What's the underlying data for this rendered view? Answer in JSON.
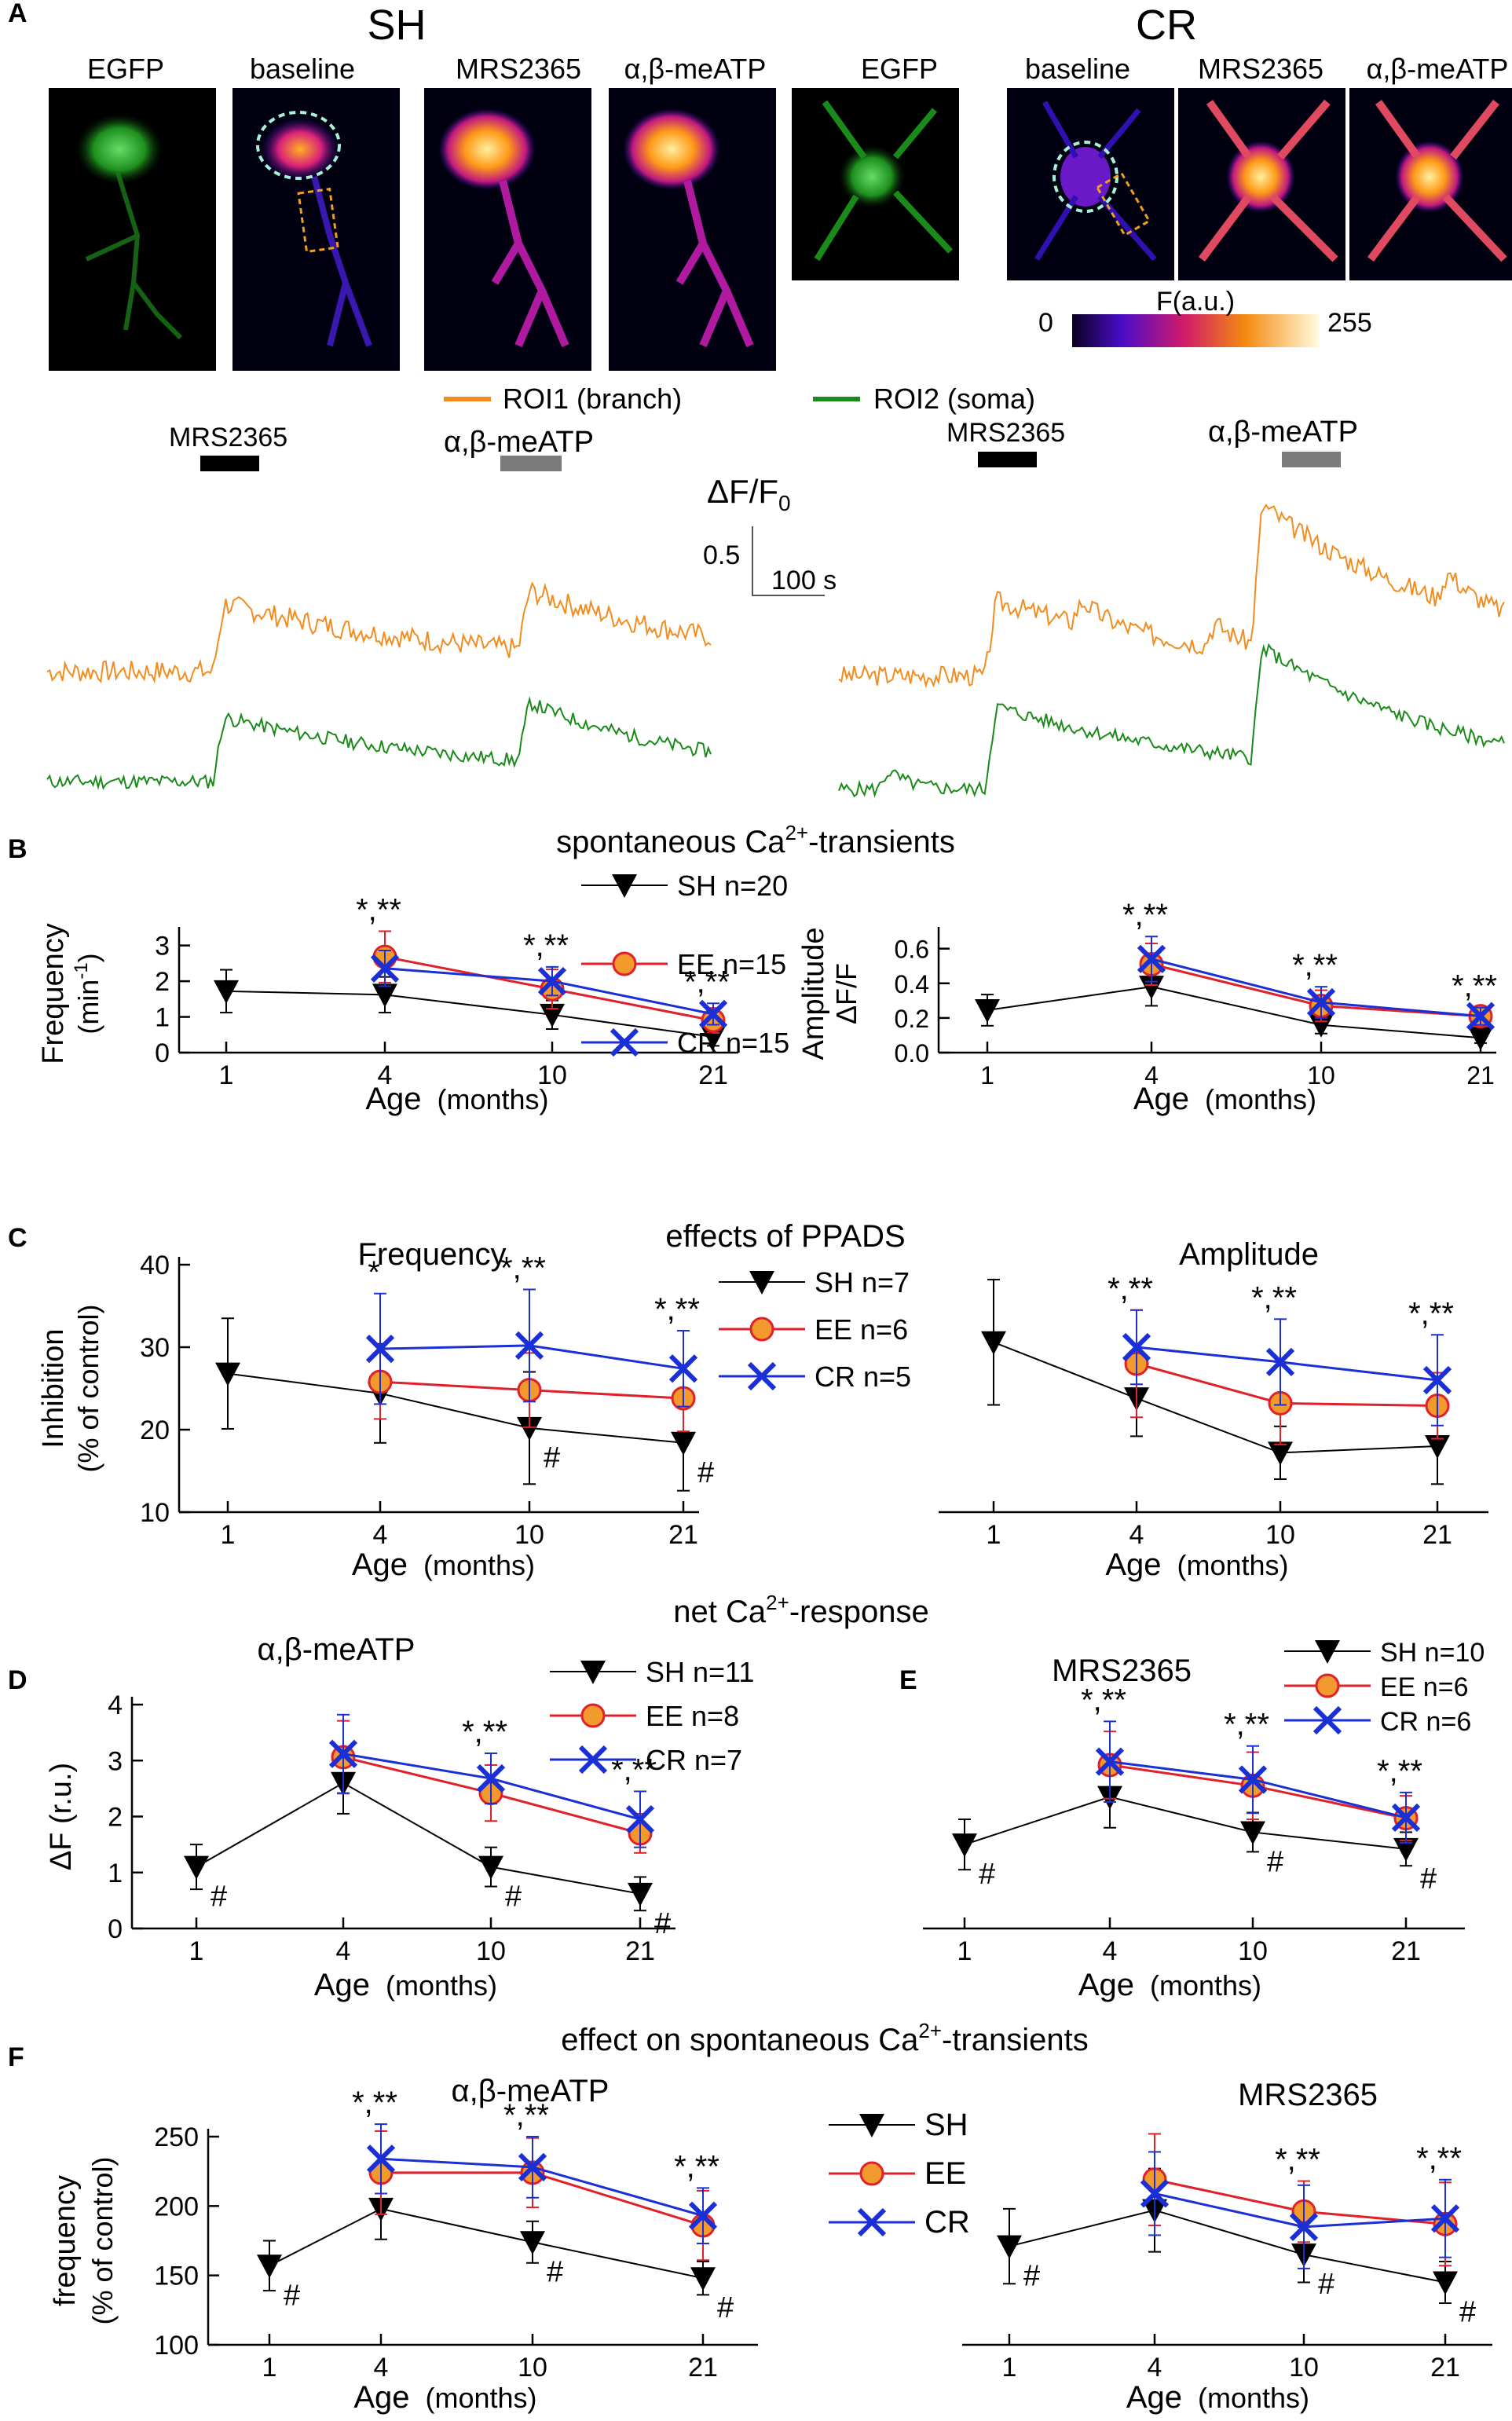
{
  "colors": {
    "SH": "#000000",
    "SH_line": "#555555",
    "EE": "#e0202a",
    "EE_fill": "#f29a2e",
    "CR": "#1a2fd6",
    "orange_trace": "#f28c1f",
    "green_trace": "#1a8a1a",
    "black_bar": "#000000",
    "gray_bar": "#7a7a7a"
  },
  "panel_letters": {
    "A": "A",
    "B": "B",
    "C": "C",
    "D": "D",
    "E": "E",
    "F": "F"
  },
  "panel_A": {
    "group_SH": "SH",
    "group_CR": "CR",
    "image_labels": [
      "EGFP",
      "baseline",
      "MRS2365",
      "α,β-meATP"
    ],
    "colorbar_label": "F(a.u.)",
    "colorbar_min": "0",
    "colorbar_max": "255",
    "legend_roi1": "ROI1 (branch)",
    "legend_roi2": "ROI2 (soma)",
    "drug1": "MRS2365",
    "drug2": "α,β-meATP",
    "scale_y_base": "ΔF/F",
    "scale_y_sub": "0",
    "scale_y_value": "0.5",
    "scale_x_value": "100 s"
  },
  "legend_labels": {
    "B": [
      "SH n=20",
      "EE n=15",
      "CR n=15"
    ],
    "C": [
      "SH n=7",
      "EE n=6",
      "CR n=5"
    ],
    "D": [
      "SH n=11",
      "EE n=8",
      "CR n=7"
    ],
    "E": [
      "SH n=10",
      "EE n=6",
      "CR n=6"
    ],
    "F": [
      "SH",
      "EE",
      "CR"
    ]
  },
  "section_titles": {
    "B_pre": "spontaneous  Ca",
    "B_sup": "2+",
    "B_post": "-transients",
    "C": "effects of PPADS",
    "D_pre": "net Ca",
    "D_sup": "2+",
    "D_post": "-response",
    "F_pre": "effect on spontaneous  Ca",
    "F_sup": "2+",
    "F_post": "-transients"
  },
  "chart_data": [
    {
      "id": "B_freq",
      "type": "line",
      "panel": "B",
      "ylabel_line1": "Frequency",
      "ylabel_line2_pre": "(min",
      "ylabel_line2_sup": "-1",
      "ylabel_line2_post": ")",
      "xlabel": "Age",
      "xunit": "(months)",
      "categories": [
        "1",
        "4",
        "10",
        "21"
      ],
      "ylim": [
        0,
        3.3
      ],
      "yticks": [
        "0",
        "1",
        "2",
        "3"
      ],
      "series": [
        {
          "name": "SH",
          "values": [
            1.72,
            1.62,
            1.06,
            0.44
          ],
          "err": [
            0.6,
            0.5,
            0.4,
            0.25
          ]
        },
        {
          "name": "EE",
          "values": [
            null,
            2.68,
            1.78,
            0.9
          ],
          "err": [
            0,
            0.72,
            0.55,
            0.35
          ]
        },
        {
          "name": "CR",
          "values": [
            null,
            2.36,
            2.0,
            1.08
          ],
          "err": [
            0,
            0.5,
            0.4,
            0.3
          ]
        }
      ],
      "annotations": [
        {
          "text": "*,**",
          "at": "4"
        },
        {
          "text": "*,**",
          "at": "10"
        },
        {
          "text": "*,**",
          "at": "21"
        }
      ]
    },
    {
      "id": "B_amp",
      "type": "line",
      "panel": "B",
      "ylabel_line1": "Amplitude",
      "ylabel_line2": "ΔF/F",
      "xlabel": "Age",
      "xunit": "(months)",
      "categories": [
        "1",
        "4",
        "10",
        "21"
      ],
      "ylim": [
        0,
        0.68
      ],
      "yticks": [
        "0.0",
        "0.2",
        "0.4",
        "0.6"
      ],
      "series": [
        {
          "name": "SH",
          "values": [
            0.245,
            0.38,
            0.16,
            0.085
          ],
          "err": [
            0.09,
            0.11,
            0.05,
            0.03
          ]
        },
        {
          "name": "EE",
          "values": [
            null,
            0.51,
            0.27,
            0.21
          ],
          "err": [
            0,
            0.12,
            0.09,
            0.05
          ]
        },
        {
          "name": "CR",
          "values": [
            null,
            0.54,
            0.29,
            0.21
          ],
          "err": [
            0,
            0.13,
            0.09,
            0.05
          ]
        }
      ],
      "annotations": [
        {
          "text": "*,**",
          "at": "4"
        },
        {
          "text": "*,**",
          "at": "10"
        },
        {
          "text": "*,**",
          "at": "21"
        }
      ]
    },
    {
      "id": "C_freq",
      "type": "line",
      "panel": "C",
      "title": "Frequency",
      "ylabel_line1": "Inhibition",
      "ylabel_line2": "(% of control)",
      "xlabel": "Age",
      "xunit": "(months)",
      "categories": [
        "1",
        "4",
        "10",
        "21"
      ],
      "ylim": [
        10,
        40
      ],
      "yticks": [
        "10",
        "20",
        "30",
        "40"
      ],
      "series": [
        {
          "name": "SH",
          "values": [
            26.8,
            24.4,
            20.2,
            18.4
          ],
          "err": [
            6.7,
            6.0,
            6.8,
            5.8
          ]
        },
        {
          "name": "EE",
          "values": [
            null,
            25.8,
            24.8,
            23.8
          ],
          "err": [
            0,
            4.5,
            4.5,
            4.0
          ]
        },
        {
          "name": "CR",
          "values": [
            null,
            29.8,
            30.2,
            27.4
          ],
          "err": [
            0,
            6.7,
            6.8,
            4.6
          ]
        }
      ],
      "annotations": [
        {
          "text": "*",
          "at": "4"
        },
        {
          "text": "*,**",
          "at": "10"
        },
        {
          "text": "*,**",
          "at": "21"
        },
        {
          "text": "#",
          "at": "10"
        },
        {
          "text": "#",
          "at": "21"
        }
      ]
    },
    {
      "id": "C_amp",
      "type": "line",
      "panel": "C",
      "title": "Amplitude",
      "xlabel": "Age",
      "xunit": "(months)",
      "categories": [
        "1",
        "4",
        "10",
        "21"
      ],
      "ylim": [
        10,
        40
      ],
      "yticks": [],
      "series": [
        {
          "name": "SH",
          "values": [
            30.6,
            23.8,
            17.2,
            18.0
          ],
          "err": [
            7.6,
            4.6,
            3.2,
            4.6
          ]
        },
        {
          "name": "EE",
          "values": [
            null,
            28.0,
            23.2,
            22.9
          ],
          "err": [
            0,
            6.5,
            5.0,
            4.0
          ]
        },
        {
          "name": "CR",
          "values": [
            null,
            30.0,
            28.2,
            26.0
          ],
          "err": [
            0,
            4.5,
            5.2,
            5.5
          ]
        }
      ],
      "annotations": [
        {
          "text": "*,**",
          "at": "4"
        },
        {
          "text": "*,**",
          "at": "10"
        },
        {
          "text": "*,**",
          "at": "21"
        }
      ]
    },
    {
      "id": "D",
      "type": "line",
      "panel": "D",
      "title": "α,β-meATP",
      "ylabel_line1": "ΔF (r.u.)",
      "xlabel": "Age",
      "xunit": "(months)",
      "categories": [
        "1",
        "4",
        "10",
        "21"
      ],
      "ylim": [
        0,
        4
      ],
      "yticks": [
        "0",
        "1",
        "2",
        "3",
        "4"
      ],
      "series": [
        {
          "name": "SH",
          "values": [
            1.1,
            2.6,
            1.1,
            0.62
          ],
          "err": [
            0.4,
            0.55,
            0.35,
            0.3
          ]
        },
        {
          "name": "EE",
          "values": [
            null,
            3.06,
            2.42,
            1.7
          ],
          "err": [
            0,
            0.65,
            0.5,
            0.35
          ]
        },
        {
          "name": "CR",
          "values": [
            null,
            3.12,
            2.68,
            1.95
          ],
          "err": [
            0,
            0.7,
            0.45,
            0.5
          ]
        }
      ],
      "annotations": [
        {
          "text": "#",
          "at": "1"
        },
        {
          "text": "#",
          "at": "10"
        },
        {
          "text": "#",
          "at": "21"
        },
        {
          "text": "*,**",
          "at": "10"
        },
        {
          "text": "*,**",
          "at": "21"
        }
      ]
    },
    {
      "id": "E",
      "type": "line",
      "panel": "E",
      "title": "MRS2365",
      "xlabel": "Age",
      "xunit": "(months)",
      "categories": [
        "1",
        "4",
        "10",
        "21"
      ],
      "ylim": [
        0,
        4
      ],
      "yticks": [],
      "series": [
        {
          "name": "SH",
          "values": [
            1.5,
            2.35,
            1.72,
            1.42
          ],
          "err": [
            0.45,
            0.55,
            0.35,
            0.3
          ]
        },
        {
          "name": "EE",
          "values": [
            null,
            2.92,
            2.55,
            1.97
          ],
          "err": [
            0,
            0.6,
            0.6,
            0.4
          ]
        },
        {
          "name": "CR",
          "values": [
            null,
            2.98,
            2.66,
            1.98
          ],
          "err": [
            0,
            0.72,
            0.6,
            0.45
          ]
        }
      ],
      "annotations": [
        {
          "text": "*,**",
          "at": "4"
        },
        {
          "text": "*,**",
          "at": "10"
        },
        {
          "text": "*,**",
          "at": "21"
        },
        {
          "text": "#",
          "at": "1"
        },
        {
          "text": "#",
          "at": "10"
        },
        {
          "text": "#",
          "at": "21"
        }
      ]
    },
    {
      "id": "F_ab",
      "type": "line",
      "panel": "F",
      "title": "α,β-meATP",
      "ylabel_line1": "frequency",
      "ylabel_line2": "(% of control)",
      "xlabel": "Age",
      "xunit": "(months)",
      "categories": [
        "1",
        "4",
        "10",
        "21"
      ],
      "ylim": [
        100,
        250
      ],
      "yticks": [
        "100",
        "150",
        "200",
        "250"
      ],
      "series": [
        {
          "name": "SH",
          "values": [
            157,
            198,
            174,
            148
          ],
          "err": [
            18,
            22,
            15,
            12
          ]
        },
        {
          "name": "EE",
          "values": [
            null,
            224,
            224,
            186
          ],
          "err": [
            0,
            30,
            25,
            25
          ]
        },
        {
          "name": "CR",
          "values": [
            null,
            234,
            228,
            193
          ],
          "err": [
            0,
            25,
            22,
            20
          ]
        }
      ],
      "annotations": [
        {
          "text": "*,**",
          "at": "4"
        },
        {
          "text": "*,**",
          "at": "10"
        },
        {
          "text": "*,**",
          "at": "21"
        },
        {
          "text": "#",
          "at": "1"
        },
        {
          "text": "#",
          "at": "10"
        },
        {
          "text": "#",
          "at": "21"
        }
      ]
    },
    {
      "id": "F_mrs",
      "type": "line",
      "panel": "F",
      "title": "MRS2365",
      "xlabel": "Age",
      "xunit": "(months)",
      "categories": [
        "1",
        "4",
        "10",
        "21"
      ],
      "ylim": [
        100,
        250
      ],
      "yticks": [],
      "series": [
        {
          "name": "SH",
          "values": [
            171,
            197,
            165,
            145
          ],
          "err": [
            27,
            30,
            20,
            15
          ]
        },
        {
          "name": "EE",
          "values": [
            null,
            219,
            196,
            187
          ],
          "err": [
            0,
            33,
            22,
            30
          ]
        },
        {
          "name": "CR",
          "values": [
            null,
            209,
            185,
            191
          ],
          "err": [
            0,
            30,
            30,
            28
          ]
        }
      ],
      "annotations": [
        {
          "text": "*,**",
          "at": "10"
        },
        {
          "text": "*,**",
          "at": "21"
        },
        {
          "text": "#",
          "at": "1"
        },
        {
          "text": "#",
          "at": "10"
        },
        {
          "text": "#",
          "at": "21"
        }
      ]
    }
  ]
}
